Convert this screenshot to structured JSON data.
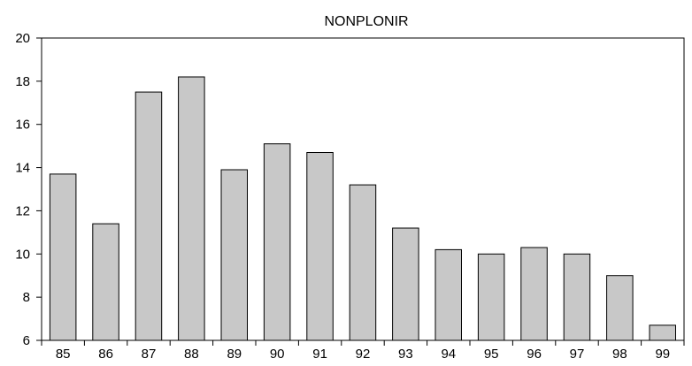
{
  "chart_data": {
    "type": "bar",
    "title": "NONPLONIR",
    "xlabel": "",
    "ylabel": "",
    "categories": [
      "85",
      "86",
      "87",
      "88",
      "89",
      "90",
      "91",
      "92",
      "93",
      "94",
      "95",
      "96",
      "97",
      "98",
      "99"
    ],
    "values": [
      13.7,
      11.4,
      17.5,
      18.2,
      13.9,
      15.1,
      14.7,
      13.2,
      11.2,
      10.2,
      10.0,
      10.3,
      10.0,
      9.0,
      6.7
    ],
    "ylim": [
      6,
      20
    ],
    "yticks": [
      "6",
      "8",
      "10",
      "12",
      "14",
      "16",
      "18",
      "20"
    ],
    "grid": false,
    "colors": {
      "bar_fill": "#c8c8c8",
      "bar_stroke": "#000000",
      "axis": "#000000"
    }
  }
}
